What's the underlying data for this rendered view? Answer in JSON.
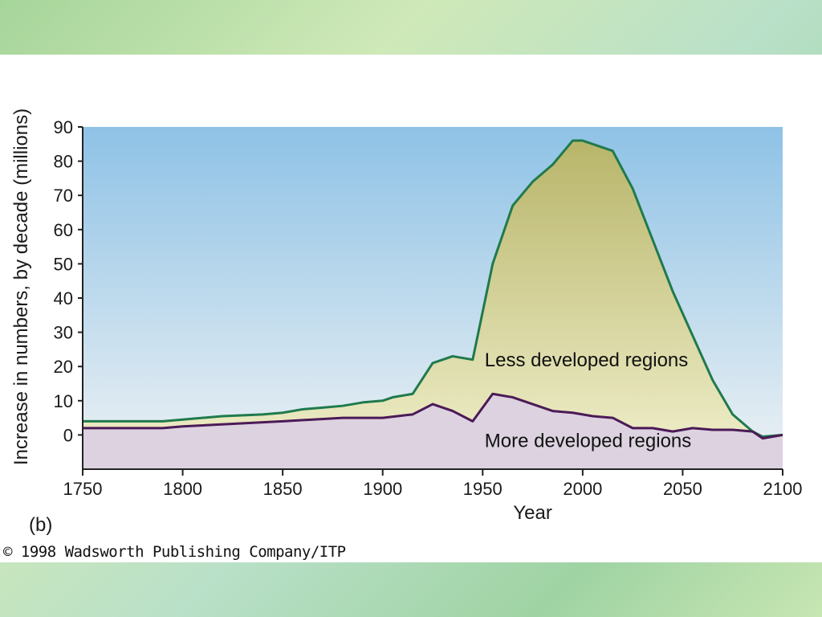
{
  "colors": {
    "less_line": "#1f7a4d",
    "less_fill": "#c7c77a",
    "more_line": "#4b1a57",
    "more_fill": "#dcd2e0",
    "sky_top": "#8ec2e6",
    "sky_bottom": "#eef2f4"
  },
  "chart_data": {
    "type": "area",
    "title": "",
    "xlabel": "Year",
    "ylabel": "Increase in numbers, by decade (millions)",
    "xlim": [
      1750,
      2100
    ],
    "ylim": [
      -10,
      90
    ],
    "x_ticks": [
      1750,
      1800,
      1850,
      1900,
      1950,
      2000,
      2050,
      2100
    ],
    "y_ticks": [
      0,
      10,
      20,
      30,
      40,
      50,
      60,
      70,
      80,
      90
    ],
    "series": [
      {
        "name": "Less developed regions",
        "x": [
          1750,
          1790,
          1800,
          1820,
          1840,
          1850,
          1860,
          1870,
          1880,
          1890,
          1900,
          1905,
          1915,
          1925,
          1935,
          1945,
          1955,
          1965,
          1975,
          1985,
          1995,
          2000,
          2005,
          2015,
          2025,
          2035,
          2045,
          2055,
          2065,
          2075,
          2085,
          2090,
          2100
        ],
        "values": [
          4,
          4,
          4.5,
          5.5,
          6,
          6.5,
          7.5,
          8,
          8.5,
          9.5,
          10,
          11,
          12,
          21,
          23,
          22,
          50,
          67,
          74,
          79,
          86,
          86,
          85,
          83,
          72,
          57,
          42,
          29,
          16,
          6,
          1,
          -0.5,
          0
        ]
      },
      {
        "name": "More developed regions",
        "x": [
          1750,
          1790,
          1800,
          1850,
          1880,
          1900,
          1915,
          1925,
          1935,
          1945,
          1955,
          1965,
          1975,
          1985,
          1995,
          2000,
          2005,
          2015,
          2025,
          2035,
          2045,
          2055,
          2065,
          2075,
          2085,
          2090,
          2100
        ],
        "values": [
          2,
          2,
          2.5,
          4,
          5,
          5,
          6,
          9,
          7,
          4,
          12,
          11,
          9,
          7,
          6.5,
          6,
          5.5,
          5,
          2,
          2,
          1,
          2,
          1.5,
          1.5,
          1,
          -1,
          0
        ]
      }
    ],
    "annotations": [
      "Less developed regions",
      "More developed regions"
    ]
  },
  "caption": "(b)",
  "copyright": "© 1998 Wadsworth Publishing Company/ITP"
}
